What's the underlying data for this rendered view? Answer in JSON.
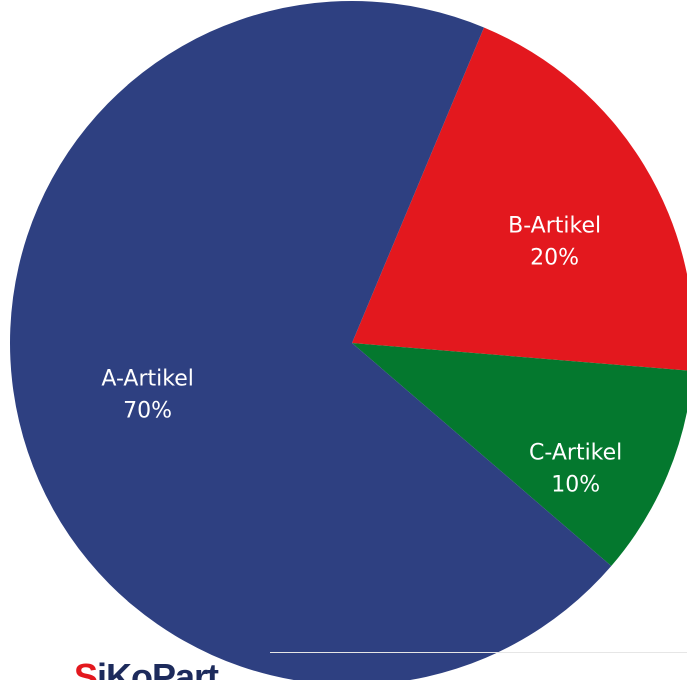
{
  "chart_data": {
    "type": "pie",
    "title": "",
    "slices": [
      {
        "label": "A-Artikel",
        "value": 70,
        "value_label": "70%",
        "color": "#2e4081"
      },
      {
        "label": "B-Artikel",
        "value": 20,
        "value_label": "20%",
        "color": "#e3181e"
      },
      {
        "label": "C-Artikel",
        "value": 10,
        "value_label": "10%",
        "color": "#04782e"
      }
    ]
  },
  "logo": {
    "text": "iKoPart",
    "accent_color": "#e3181e"
  }
}
